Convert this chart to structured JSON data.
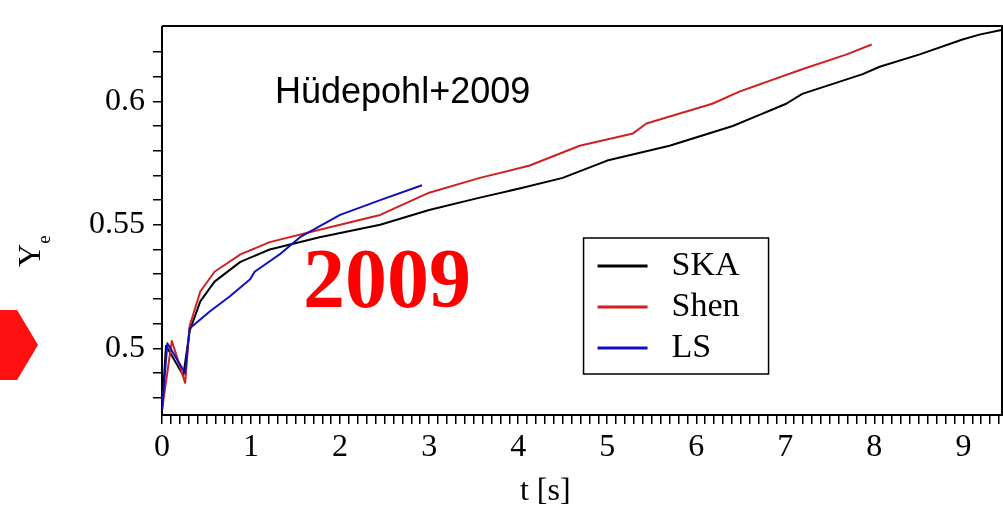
{
  "chart_data": {
    "type": "line",
    "xlabel": "t [s]",
    "ylabel": "Y$_{e}$",
    "xlim": [
      0,
      9.44
    ],
    "ylim": [
      0.473,
      0.63
    ],
    "xticks": [
      0,
      {
        "value": 0.1,
        "label": null
      },
      {
        "value": 0.2,
        "label": null
      },
      {
        "value": 0.3,
        "label": null
      },
      {
        "value": 0.4,
        "label": null
      },
      {
        "value": 0.5,
        "label": null
      },
      {
        "value": 0.6,
        "label": null
      },
      {
        "value": 0.7,
        "label": null
      },
      {
        "value": 0.8,
        "label": null
      },
      {
        "value": 0.9,
        "label": null
      },
      1,
      {
        "value": 1.1,
        "label": null
      },
      {
        "value": 1.2,
        "label": null
      },
      {
        "value": 1.3,
        "label": null
      },
      {
        "value": 1.4,
        "label": null
      },
      {
        "value": 1.5,
        "label": null
      },
      {
        "value": 1.6,
        "label": null
      },
      {
        "value": 1.7,
        "label": null
      },
      {
        "value": 1.8,
        "label": null
      },
      {
        "value": 1.9,
        "label": null
      },
      2,
      {
        "value": 2.1,
        "label": null
      },
      {
        "value": 2.2,
        "label": null
      },
      {
        "value": 2.3,
        "label": null
      },
      {
        "value": 2.4,
        "label": null
      },
      {
        "value": 2.5,
        "label": null
      },
      {
        "value": 2.6,
        "label": null
      },
      {
        "value": 2.7,
        "label": null
      },
      {
        "value": 2.8,
        "label": null
      },
      {
        "value": 2.9,
        "label": null
      },
      3,
      {
        "value": 3.1,
        "label": null
      },
      {
        "value": 3.2,
        "label": null
      },
      {
        "value": 3.3,
        "label": null
      },
      {
        "value": 3.4,
        "label": null
      },
      {
        "value": 3.5,
        "label": null
      },
      {
        "value": 3.6,
        "label": null
      },
      {
        "value": 3.7,
        "label": null
      },
      {
        "value": 3.8,
        "label": null
      },
      {
        "value": 3.9,
        "label": null
      },
      4,
      {
        "value": 4.1,
        "label": null
      },
      {
        "value": 4.2,
        "label": null
      },
      {
        "value": 4.3,
        "label": null
      },
      {
        "value": 4.4,
        "label": null
      },
      {
        "value": 4.5,
        "label": null
      },
      {
        "value": 4.6,
        "label": null
      },
      {
        "value": 4.7,
        "label": null
      },
      {
        "value": 4.8,
        "label": null
      },
      {
        "value": 4.9,
        "label": null
      },
      5,
      {
        "value": 5.1,
        "label": null
      },
      {
        "value": 5.2,
        "label": null
      },
      {
        "value": 5.3,
        "label": null
      },
      {
        "value": 5.4,
        "label": null
      },
      {
        "value": 5.5,
        "label": null
      },
      {
        "value": 5.6,
        "label": null
      },
      {
        "value": 5.7,
        "label": null
      },
      {
        "value": 5.8,
        "label": null
      },
      {
        "value": 5.9,
        "label": null
      },
      6,
      {
        "value": 6.1,
        "label": null
      },
      {
        "value": 6.2,
        "label": null
      },
      {
        "value": 6.3,
        "label": null
      },
      {
        "value": 6.4,
        "label": null
      },
      {
        "value": 6.5,
        "label": null
      },
      {
        "value": 6.6,
        "label": null
      },
      {
        "value": 6.7,
        "label": null
      },
      {
        "value": 6.8,
        "label": null
      },
      {
        "value": 6.9,
        "label": null
      },
      7,
      {
        "value": 7.1,
        "label": null
      },
      {
        "value": 7.2,
        "label": null
      },
      {
        "value": 7.3,
        "label": null
      },
      {
        "value": 7.4,
        "label": null
      },
      {
        "value": 7.5,
        "label": null
      },
      {
        "value": 7.6,
        "label": null
      },
      {
        "value": 7.7,
        "label": null
      },
      {
        "value": 7.8,
        "label": null
      },
      {
        "value": 7.9,
        "label": null
      },
      8,
      {
        "value": 8.1,
        "label": null
      },
      {
        "value": 8.2,
        "label": null
      },
      {
        "value": 8.3,
        "label": null
      },
      {
        "value": 8.4,
        "label": null
      },
      {
        "value": 8.5,
        "label": null
      },
      {
        "value": 8.6,
        "label": null
      },
      {
        "value": 8.7,
        "label": null
      },
      {
        "value": 8.8,
        "label": null
      },
      {
        "value": 8.9,
        "label": null
      },
      9,
      {
        "value": 9.1,
        "label": null
      },
      {
        "value": 9.2,
        "label": null
      },
      {
        "value": 9.3,
        "label": null
      },
      {
        "value": 9.4,
        "label": null
      }
    ],
    "yticks": [
      {
        "value": 0.48,
        "label": null
      },
      {
        "value": 0.49,
        "label": null
      },
      0.5,
      {
        "value": 0.51,
        "label": null
      },
      {
        "value": 0.52,
        "label": null
      },
      {
        "value": 0.53,
        "label": null
      },
      {
        "value": 0.54,
        "label": null
      },
      0.55,
      {
        "value": 0.56,
        "label": null
      },
      {
        "value": 0.57,
        "label": null
      },
      {
        "value": 0.58,
        "label": null
      },
      {
        "value": 0.59,
        "label": null
      },
      0.6,
      {
        "value": 0.61,
        "label": null
      },
      {
        "value": 0.62,
        "label": null
      }
    ],
    "grid": false,
    "legend": "bottom right",
    "marker": "none",
    "line_style": "solid",
    "annotations": [
      "Hüdepohl+2009",
      "2009"
    ],
    "series": [
      {
        "name": "SKA",
        "color": "#000000",
        "x": [
          0,
          0.045,
          0.24,
          0.31,
          0.43,
          0.59,
          0.88,
          1.21,
          1.77,
          2.45,
          3.0,
          3.57,
          4.05,
          4.5,
          5.0,
          5.7,
          6.41,
          7.01,
          7.19,
          7.87,
          8.06,
          8.51,
          8.99,
          9.18,
          9.44
        ],
        "values": [
          0.475,
          0.501,
          0.489,
          0.507,
          0.519,
          0.527,
          0.535,
          0.54,
          0.545,
          0.55,
          0.556,
          0.561,
          0.565,
          0.569,
          0.576,
          0.582,
          0.59,
          0.599,
          0.603,
          0.611,
          0.614,
          0.619,
          0.625,
          0.627,
          0.629
        ]
      },
      {
        "name": "Shen",
        "color": "#d02020",
        "x": [
          0,
          0.11,
          0.26,
          0.31,
          0.43,
          0.59,
          0.88,
          1.21,
          1.77,
          2.45,
          3.0,
          3.57,
          4.13,
          4.69,
          5.29,
          5.44,
          6.18,
          6.49,
          7.19,
          7.69,
          7.97
        ],
        "values": [
          0.475,
          0.503,
          0.486,
          0.509,
          0.523,
          0.531,
          0.538,
          0.543,
          0.548,
          0.554,
          0.563,
          0.569,
          0.574,
          0.582,
          0.587,
          0.591,
          0.599,
          0.604,
          0.613,
          0.619,
          0.623
        ]
      },
      {
        "name": "LS",
        "color": "#1010c0",
        "x": [
          0,
          0.06,
          0.26,
          0.31,
          0.54,
          0.76,
          0.99,
          1.04,
          1.32,
          1.55,
          2.0,
          2.45,
          2.92
        ],
        "values": [
          0.475,
          0.502,
          0.49,
          0.508,
          0.515,
          0.521,
          0.528,
          0.531,
          0.538,
          0.545,
          0.554,
          0.56,
          0.566
        ]
      }
    ]
  }
}
